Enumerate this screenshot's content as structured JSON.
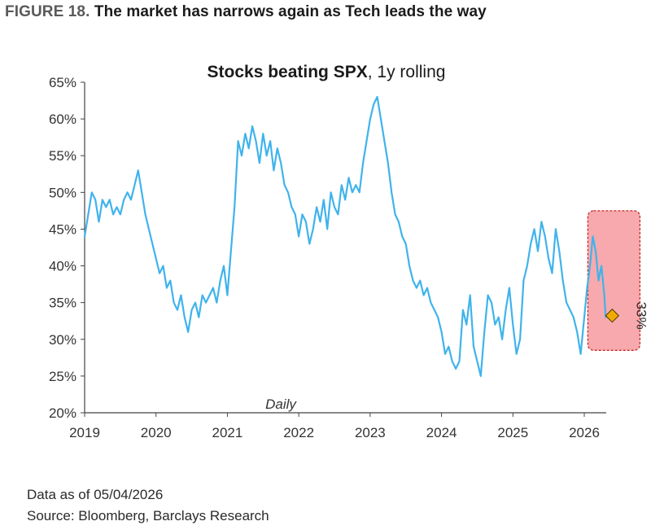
{
  "figure": {
    "label": "FIGURE 18.",
    "title": "The market has narrows again as Tech leads the way"
  },
  "footer": {
    "data_as_of": "Data as of 05/04/2026",
    "source": "Source: Bloomberg, Barclays Research"
  },
  "colors": {
    "line": "#3fb3ec",
    "highlight_fill": "#f7a9ad",
    "highlight_border": "#c62828",
    "marker": "#f2a900"
  },
  "chart_data": {
    "type": "line",
    "title_bold": "Stocks beating SPX",
    "title_rest": ", 1y rolling",
    "frequency_label": "Daily",
    "xlim": [
      2019,
      2026.4
    ],
    "ylim": [
      20,
      65
    ],
    "x_ticks": [
      2019,
      2020,
      2021,
      2022,
      2023,
      2024,
      2025,
      2026
    ],
    "x_tick_labels": [
      "2019",
      "2020",
      "2021",
      "2022",
      "2023",
      "2024",
      "2025",
      "2026"
    ],
    "y_ticks": [
      20,
      25,
      30,
      35,
      40,
      45,
      50,
      55,
      60,
      65
    ],
    "y_tick_labels": [
      "20%",
      "25%",
      "30%",
      "35%",
      "40%",
      "45%",
      "50%",
      "55%",
      "60%",
      "65%"
    ],
    "grid": false,
    "series": [
      {
        "x": [
          2019.0,
          2019.05,
          2019.1,
          2019.15,
          2019.2,
          2019.25,
          2019.3,
          2019.35,
          2019.4,
          2019.45,
          2019.5,
          2019.55,
          2019.6,
          2019.65,
          2019.7,
          2019.75,
          2019.8,
          2019.85,
          2019.9,
          2019.95,
          2020.0,
          2020.05,
          2020.1,
          2020.15,
          2020.2,
          2020.25,
          2020.3,
          2020.35,
          2020.4,
          2020.45,
          2020.5,
          2020.55,
          2020.6,
          2020.65,
          2020.7,
          2020.75,
          2020.8,
          2020.85,
          2020.9,
          2020.95,
          2021.0,
          2021.05,
          2021.1,
          2021.15,
          2021.2,
          2021.25,
          2021.3,
          2021.35,
          2021.4,
          2021.45,
          2021.5,
          2021.55,
          2021.6,
          2021.65,
          2021.7,
          2021.75,
          2021.8,
          2021.85,
          2021.9,
          2021.95,
          2022.0,
          2022.05,
          2022.1,
          2022.15,
          2022.2,
          2022.25,
          2022.3,
          2022.35,
          2022.4,
          2022.45,
          2022.5,
          2022.55,
          2022.6,
          2022.65,
          2022.7,
          2022.75,
          2022.8,
          2022.85,
          2022.9,
          2022.95,
          2023.0,
          2023.05,
          2023.1,
          2023.15,
          2023.2,
          2023.25,
          2023.3,
          2023.35,
          2023.4,
          2023.45,
          2023.5,
          2023.55,
          2023.6,
          2023.65,
          2023.7,
          2023.75,
          2023.8,
          2023.85,
          2023.9,
          2023.95,
          2024.0,
          2024.05,
          2024.1,
          2024.15,
          2024.2,
          2024.25,
          2024.3,
          2024.35,
          2024.4,
          2024.45,
          2024.5,
          2024.55,
          2024.6,
          2024.65,
          2024.7,
          2024.75,
          2024.8,
          2024.85,
          2024.9,
          2024.95,
          2025.0,
          2025.05,
          2025.1,
          2025.15,
          2025.2,
          2025.25,
          2025.3,
          2025.35,
          2025.4,
          2025.45,
          2025.5,
          2025.55,
          2025.6,
          2025.65,
          2025.7,
          2025.75,
          2025.8,
          2025.85,
          2025.9,
          2025.95,
          2026.0,
          2026.04,
          2026.08,
          2026.12,
          2026.16,
          2026.2,
          2026.24,
          2026.28,
          2026.3
        ],
        "y": [
          44,
          47,
          50,
          49,
          46,
          49,
          48,
          49,
          47,
          48,
          47,
          49,
          50,
          49,
          51,
          53,
          50,
          47,
          45,
          43,
          41,
          39,
          40,
          37,
          38,
          35,
          34,
          36,
          33,
          31,
          34,
          35,
          33,
          36,
          35,
          36,
          37,
          35,
          38,
          40,
          36,
          42,
          48,
          57,
          55,
          58,
          56,
          59,
          57,
          54,
          58,
          55,
          57,
          53,
          56,
          54,
          51,
          50,
          48,
          47,
          44,
          47,
          46,
          43,
          45,
          48,
          46,
          49,
          45,
          50,
          48,
          47,
          51,
          49,
          52,
          50,
          51,
          50,
          54,
          57,
          60,
          62,
          63,
          60,
          57,
          54,
          50,
          47,
          46,
          44,
          43,
          40,
          38,
          37,
          38,
          36,
          37,
          35,
          34,
          33,
          31,
          28,
          29,
          27,
          26,
          27,
          34,
          32,
          36,
          29,
          27,
          25,
          31,
          36,
          35,
          32,
          33,
          30,
          34,
          37,
          32,
          28,
          30,
          38,
          40,
          43,
          45,
          42,
          46,
          44,
          41,
          39,
          45,
          42,
          38,
          35,
          34,
          33,
          31,
          28,
          33,
          37,
          40,
          44,
          42,
          38,
          40,
          36,
          33
        ]
      }
    ],
    "highlight_range": {
      "x": [
        2026.05,
        2026.78
      ],
      "y": [
        28.5,
        47.5
      ]
    },
    "annotation": {
      "x": 2026.3,
      "y": 33,
      "label": "33%"
    }
  }
}
